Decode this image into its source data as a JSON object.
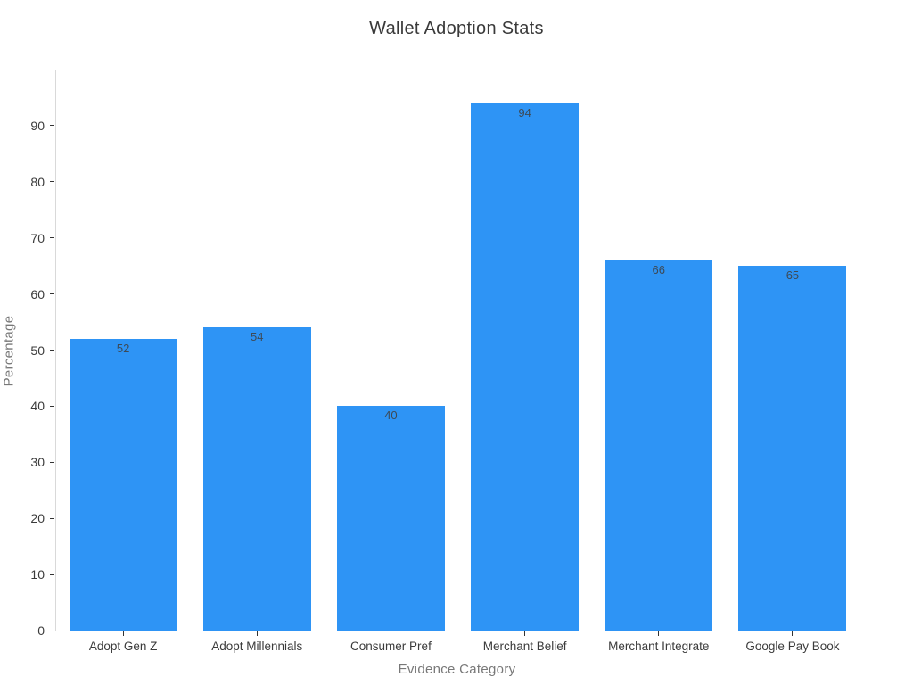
{
  "chart_data": {
    "type": "bar",
    "title": "Wallet Adoption Stats",
    "xlabel": "Evidence Category",
    "ylabel": "Percentage",
    "categories": [
      "Adopt Gen Z",
      "Adopt Millennials",
      "Consumer Pref",
      "Merchant Belief",
      "Merchant Integrate",
      "Google Pay Book"
    ],
    "values": [
      52,
      54,
      40,
      94,
      66,
      65
    ],
    "yticks": [
      0,
      10,
      20,
      30,
      40,
      50,
      60,
      70,
      80,
      90
    ],
    "ylim": [
      0,
      100
    ],
    "grid": false,
    "legend": "none",
    "bar_color": "#2e94f5",
    "colors": {
      "background": "#ffffff",
      "title": "#3a3a3a",
      "tick_label": "#3b3b3b",
      "value_label": "#3d4a57",
      "axis_title": "#787878",
      "axis_line": "#d9d9d9",
      "tick_mark": "#333333"
    }
  }
}
